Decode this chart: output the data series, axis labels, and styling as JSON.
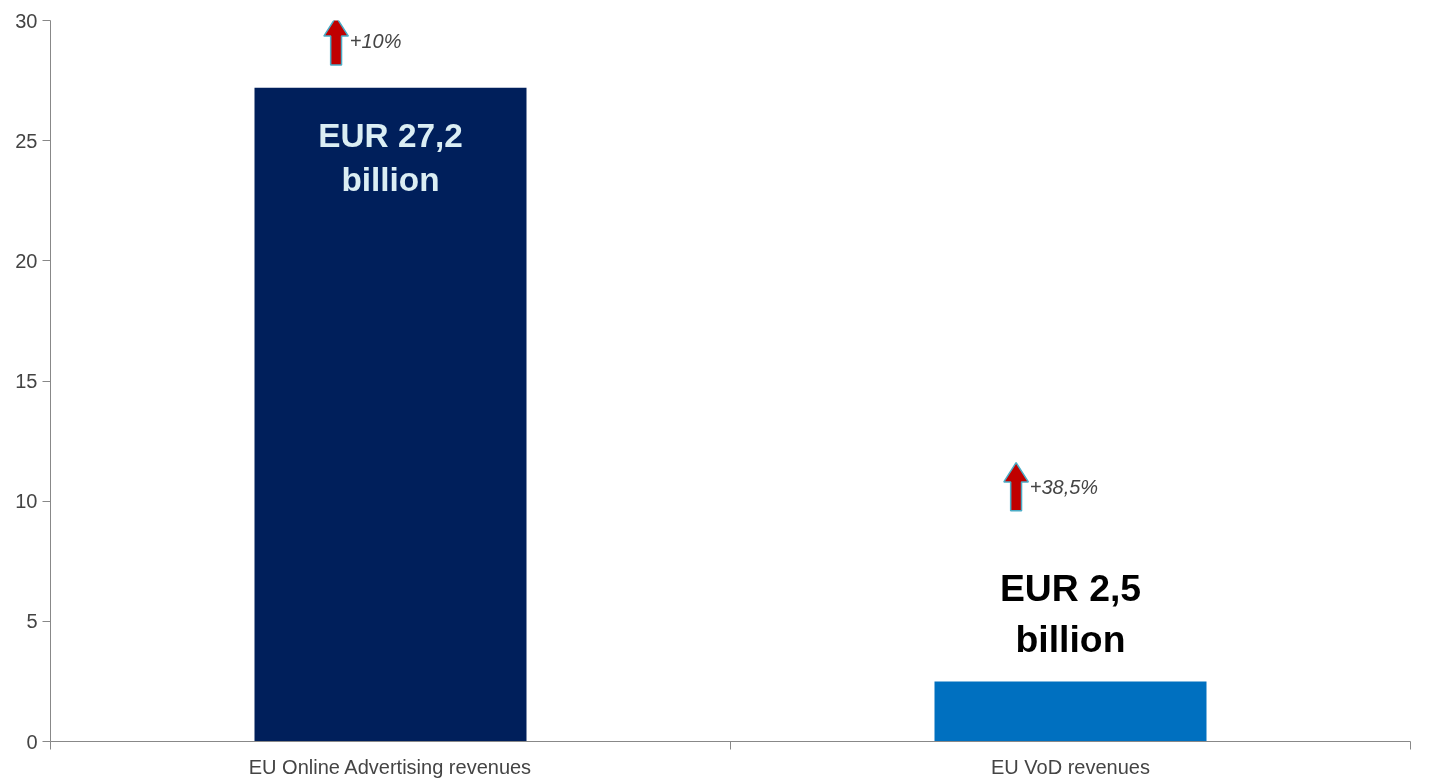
{
  "chart_data": {
    "type": "bar",
    "categories": [
      "EU Online Advertising revenues",
      "EU VoD revenues"
    ],
    "values": [
      27.2,
      2.5
    ],
    "colors": [
      "#001f5b",
      "#0070c0"
    ],
    "value_labels": [
      "EUR 27,2\nbillion",
      "EUR 2,5\nbillion"
    ],
    "annotations": [
      "+10%",
      "+38,5%"
    ],
    "ylim": [
      0,
      30
    ],
    "yticks": [
      0,
      5,
      10,
      15,
      20,
      25,
      30
    ],
    "grid": false
  }
}
